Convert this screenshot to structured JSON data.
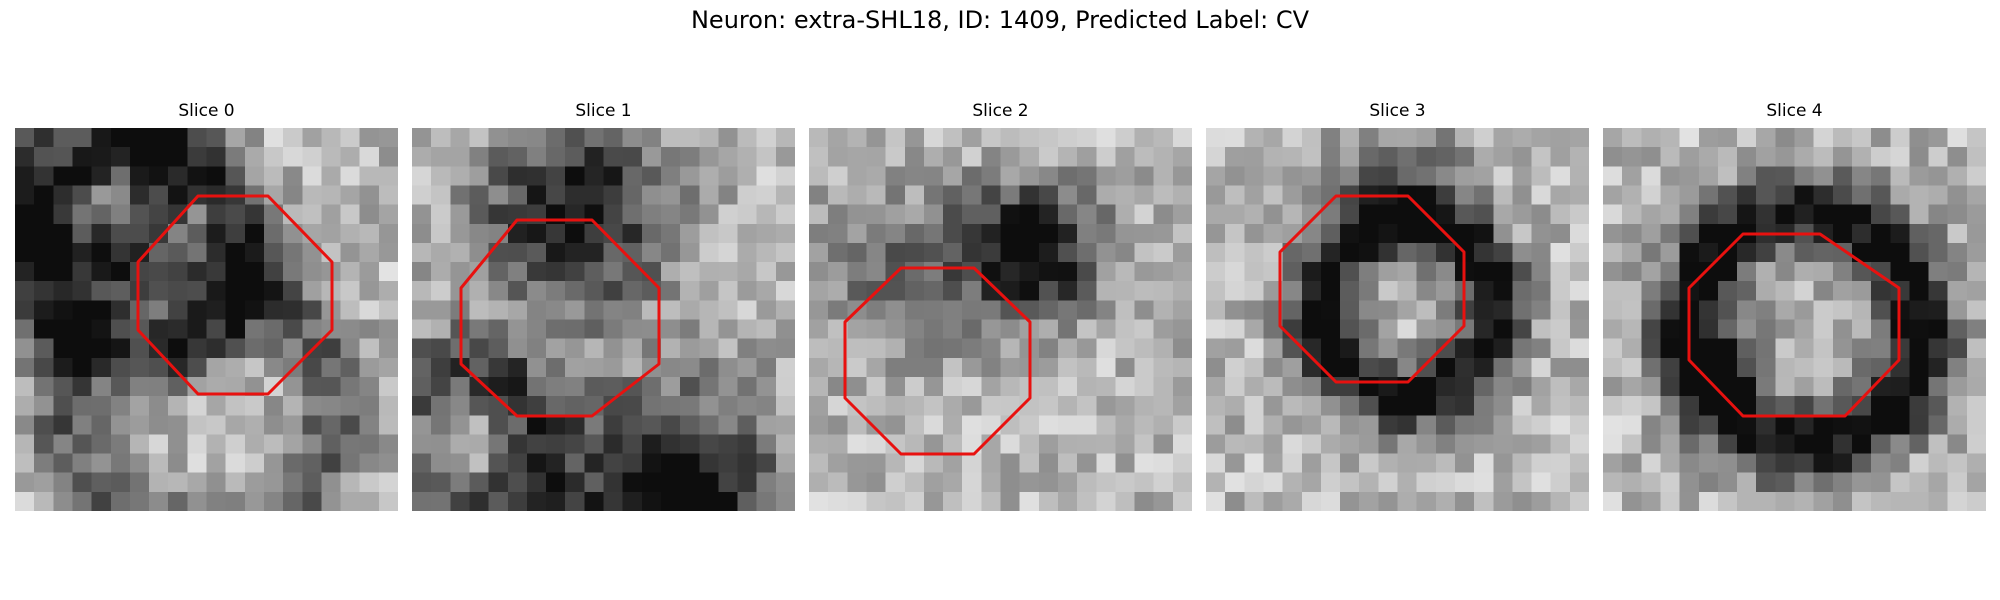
{
  "figure": {
    "title": "Neuron: extra-SHL18, ID: 1409, Predicted Label: CV"
  },
  "colors": {
    "outline": "#e8110f",
    "background": "#ffffff"
  },
  "slices": [
    {
      "title": "Slice 0"
    },
    {
      "title": "Slice 1"
    },
    {
      "title": "Slice 2"
    },
    {
      "title": "Slice 3"
    },
    {
      "title": "Slice 4"
    }
  ]
}
